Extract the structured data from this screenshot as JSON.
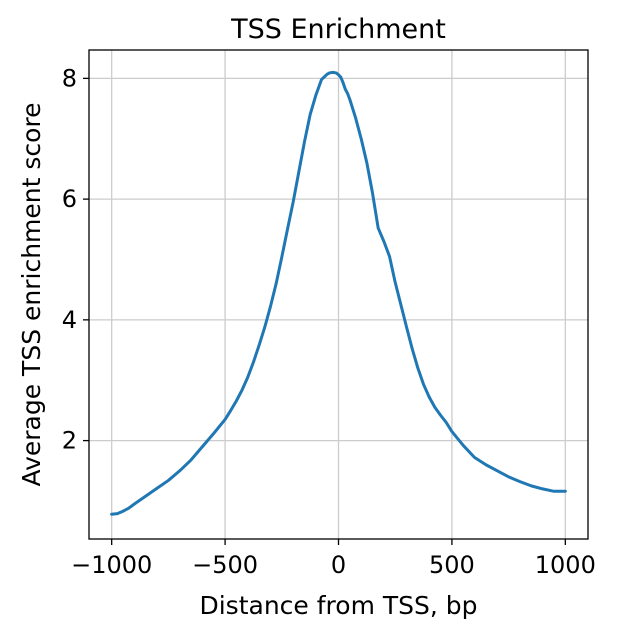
{
  "chart_data": {
    "type": "line",
    "title": "TSS Enrichment",
    "xlabel": "Distance from TSS, bp",
    "ylabel": "Average TSS enrichment score",
    "xlim": [
      -1100,
      1100
    ],
    "ylim": [
      0.37,
      8.47
    ],
    "xticks": [
      -1000,
      -500,
      0,
      500,
      1000
    ],
    "xtick_labels": [
      "−1000",
      "−500",
      "0",
      "500",
      "1000"
    ],
    "yticks": [
      2,
      4,
      6,
      8
    ],
    "ytick_labels": [
      "2",
      "4",
      "6",
      "8"
    ],
    "grid": true,
    "legend": "none",
    "series": [
      {
        "color": "#1f77b4",
        "x": [
          -1000,
          -975,
          -950,
          -925,
          -900,
          -850,
          -800,
          -750,
          -700,
          -650,
          -600,
          -550,
          -500,
          -475,
          -450,
          -425,
          -400,
          -375,
          -350,
          -325,
          -300,
          -275,
          -250,
          -225,
          -200,
          -175,
          -150,
          -125,
          -100,
          -75,
          -50,
          -40,
          -25,
          -10,
          0,
          10,
          20,
          30,
          40,
          50,
          75,
          100,
          125,
          150,
          175,
          200,
          225,
          250,
          275,
          300,
          325,
          350,
          375,
          400,
          425,
          450,
          475,
          500,
          550,
          600,
          650,
          700,
          750,
          800,
          850,
          900,
          950,
          975,
          1000
        ],
        "y": [
          0.78,
          0.79,
          0.83,
          0.88,
          0.95,
          1.08,
          1.21,
          1.34,
          1.5,
          1.68,
          1.9,
          2.12,
          2.35,
          2.5,
          2.66,
          2.84,
          3.05,
          3.3,
          3.58,
          3.88,
          4.22,
          4.6,
          5.04,
          5.5,
          5.95,
          6.45,
          6.95,
          7.4,
          7.72,
          7.98,
          8.07,
          8.09,
          8.1,
          8.09,
          8.06,
          8.02,
          7.93,
          7.82,
          7.75,
          7.65,
          7.35,
          7.0,
          6.6,
          6.1,
          5.52,
          5.3,
          5.05,
          4.62,
          4.25,
          3.88,
          3.52,
          3.2,
          2.93,
          2.72,
          2.55,
          2.42,
          2.3,
          2.15,
          1.92,
          1.72,
          1.6,
          1.5,
          1.4,
          1.32,
          1.25,
          1.2,
          1.16,
          1.16,
          1.16
        ]
      }
    ]
  }
}
